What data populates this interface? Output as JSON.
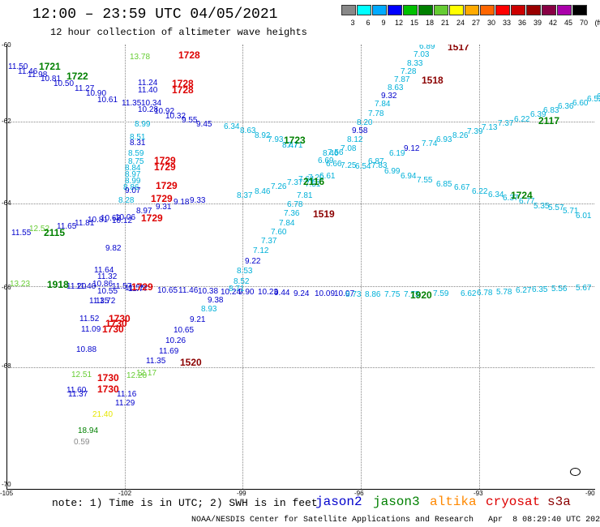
{
  "title": "12:00 – 23:59 UTC 04/05/2021",
  "subtitle": "12 hour collection of altimeter wave heights",
  "color_scale": {
    "labels": [
      "3",
      "6",
      "9",
      "12",
      "15",
      "18",
      "21",
      "24",
      "27",
      "30",
      "33",
      "36",
      "39",
      "42",
      "45",
      "70",
      "(ft)"
    ],
    "colors": [
      "#888888",
      "#00ffff",
      "#00aaff",
      "#0000ff",
      "#00c000",
      "#008000",
      "#66cc33",
      "#ffff00",
      "#ffaa00",
      "#ff6600",
      "#ff0000",
      "#cc0000",
      "#990000",
      "#880044",
      "#aa00aa",
      "#000000"
    ]
  },
  "axes": {
    "lat_labels": [
      "-60",
      "-62",
      "-64",
      "-66",
      "-68",
      "-70"
    ],
    "lon_labels": [
      "-105",
      "-102",
      "-99",
      "-96",
      "-93",
      "-90"
    ]
  },
  "colors": {
    "jason2": "#0000cc",
    "jason3": "#008000",
    "altika": "#ff8800",
    "cryosat": "#dd0000",
    "s3a": "#8b0000",
    "cyan": "#00b0d8",
    "lightgreen": "#66cc33",
    "yellow": "#e6e600",
    "gray": "#888888"
  },
  "observations": [
    {
      "t": "11.50",
      "c": "#0000cc"
    },
    {
      "t": "11.46",
      "c": "#0000cc"
    },
    {
      "t": "11.98",
      "c": "#0000cc"
    },
    {
      "t": "10.81",
      "c": "#0000cc"
    },
    {
      "t": "10.50",
      "c": "#0000cc"
    },
    {
      "t": "11.27",
      "c": "#0000cc"
    },
    {
      "t": "10.90",
      "c": "#0000cc"
    },
    {
      "t": "10.61",
      "c": "#0000cc"
    },
    {
      "t": "11.24",
      "c": "#0000cc"
    },
    {
      "t": "11.40",
      "c": "#0000cc"
    },
    {
      "t": "11.35",
      "c": "#0000cc"
    },
    {
      "t": "10.34",
      "c": "#0000cc"
    },
    {
      "t": "10.28",
      "c": "#0000cc"
    },
    {
      "t": "10.92",
      "c": "#0000cc"
    },
    {
      "t": "10.32",
      "c": "#0000cc"
    },
    {
      "t": "9.55",
      "c": "#0000cc"
    },
    {
      "t": "9.45",
      "c": "#0000cc"
    },
    {
      "t": "8.99",
      "c": "#00b0d8"
    },
    {
      "t": "8.51",
      "c": "#00b0d8"
    },
    {
      "t": "8.31",
      "c": "#0000cc"
    },
    {
      "t": "8.59",
      "c": "#00b0d8"
    },
    {
      "t": "8.75",
      "c": "#00b0d8"
    },
    {
      "t": "8.84",
      "c": "#00b0d8"
    },
    {
      "t": "8.97",
      "c": "#00b0d8"
    },
    {
      "t": "8.99",
      "c": "#00b0d8"
    },
    {
      "t": "8.86",
      "c": "#00b0d8"
    },
    {
      "t": "9.07",
      "c": "#0000cc"
    },
    {
      "t": "8.28",
      "c": "#00b0d8"
    },
    {
      "t": "8.97",
      "c": "#0000cc"
    },
    {
      "t": "9.31",
      "c": "#0000cc"
    },
    {
      "t": "9.18",
      "c": "#0000cc"
    },
    {
      "t": "9.33",
      "c": "#0000cc"
    },
    {
      "t": "10.06",
      "c": "#0000cc"
    },
    {
      "t": "10.62",
      "c": "#0000cc"
    },
    {
      "t": "10.12",
      "c": "#0000cc"
    },
    {
      "t": "10.81",
      "c": "#0000cc"
    },
    {
      "t": "11.81",
      "c": "#0000cc"
    },
    {
      "t": "11.65",
      "c": "#0000cc"
    },
    {
      "t": "11.55",
      "c": "#0000cc"
    },
    {
      "t": "12.52",
      "c": "#66cc33"
    },
    {
      "t": "9.82",
      "c": "#0000cc"
    },
    {
      "t": "11.64",
      "c": "#0000cc"
    },
    {
      "t": "11.32",
      "c": "#0000cc"
    },
    {
      "t": "13.23",
      "c": "#66cc33"
    },
    {
      "t": "11.20",
      "c": "#0000cc"
    },
    {
      "t": "11.40",
      "c": "#0000cc"
    },
    {
      "t": "10.86",
      "c": "#0000cc"
    },
    {
      "t": "10.55",
      "c": "#0000cc"
    },
    {
      "t": "11.72",
      "c": "#0000cc"
    },
    {
      "t": "11.35",
      "c": "#0000cc"
    },
    {
      "t": "11.57",
      "c": "#0000cc"
    },
    {
      "t": "11.55",
      "c": "#0000cc"
    },
    {
      "t": "11.77",
      "c": "#0000cc"
    },
    {
      "t": "10.65",
      "c": "#0000cc"
    },
    {
      "t": "11.46",
      "c": "#0000cc"
    },
    {
      "t": "10.38",
      "c": "#0000cc"
    },
    {
      "t": "10.24",
      "c": "#0000cc"
    },
    {
      "t": "9.90",
      "c": "#0000cc"
    },
    {
      "t": "10.23",
      "c": "#0000cc"
    },
    {
      "t": "9.44",
      "c": "#0000cc"
    },
    {
      "t": "9.24",
      "c": "#0000cc"
    },
    {
      "t": "10.09",
      "c": "#0000cc"
    },
    {
      "t": "10.07",
      "c": "#0000cc"
    },
    {
      "t": "8.73",
      "c": "#00b0d8"
    },
    {
      "t": "8.86",
      "c": "#00b0d8"
    },
    {
      "t": "7.75",
      "c": "#00b0d8"
    },
    {
      "t": "7.75",
      "c": "#00b0d8"
    },
    {
      "t": "7.59",
      "c": "#00b0d8"
    },
    {
      "t": "6.62",
      "c": "#00b0d8"
    },
    {
      "t": "6.78",
      "c": "#00b0d8"
    },
    {
      "t": "5.78",
      "c": "#00b0d8"
    },
    {
      "t": "6.27",
      "c": "#00b0d8"
    },
    {
      "t": "6.35",
      "c": "#00b0d8"
    },
    {
      "t": "5.56",
      "c": "#00b0d8"
    },
    {
      "t": "5.67",
      "c": "#00b0d8"
    },
    {
      "t": "11.52",
      "c": "#0000cc"
    },
    {
      "t": "11.09",
      "c": "#0000cc"
    },
    {
      "t": "10.88",
      "c": "#0000cc"
    },
    {
      "t": "9.38",
      "c": "#0000cc"
    },
    {
      "t": "8.93",
      "c": "#00b0d8"
    },
    {
      "t": "9.21",
      "c": "#0000cc"
    },
    {
      "t": "10.65",
      "c": "#0000cc"
    },
    {
      "t": "10.26",
      "c": "#0000cc"
    },
    {
      "t": "11.69",
      "c": "#0000cc"
    },
    {
      "t": "11.35",
      "c": "#0000cc"
    },
    {
      "t": "12.17",
      "c": "#66cc33"
    },
    {
      "t": "12.51",
      "c": "#66cc33"
    },
    {
      "t": "12.28",
      "c": "#66cc33"
    },
    {
      "t": "11.60",
      "c": "#0000cc"
    },
    {
      "t": "11.37",
      "c": "#0000cc"
    },
    {
      "t": "11.16",
      "c": "#0000cc"
    },
    {
      "t": "11.29",
      "c": "#0000cc"
    },
    {
      "t": "21.40",
      "c": "#e6e600"
    },
    {
      "t": "18.94",
      "c": "#008000"
    },
    {
      "t": "0.59",
      "c": "#888888"
    },
    {
      "t": "13.78",
      "c": "#66cc33"
    },
    {
      "t": "6.89",
      "c": "#00b0d8"
    },
    {
      "t": "7.03",
      "c": "#00b0d8"
    },
    {
      "t": "8.33",
      "c": "#00b0d8"
    },
    {
      "t": "7.28",
      "c": "#00b0d8"
    },
    {
      "t": "7.87",
      "c": "#00b0d8"
    },
    {
      "t": "8.63",
      "c": "#00b0d8"
    },
    {
      "t": "9.32",
      "c": "#0000cc"
    },
    {
      "t": "7.84",
      "c": "#00b0d8"
    },
    {
      "t": "7.78",
      "c": "#00b0d8"
    },
    {
      "t": "8.20",
      "c": "#00b0d8"
    },
    {
      "t": "9.58",
      "c": "#0000cc"
    },
    {
      "t": "8.12",
      "c": "#00b0d8"
    },
    {
      "t": "7.08",
      "c": "#00b0d8"
    },
    {
      "t": "7.56",
      "c": "#00b0d8"
    },
    {
      "t": "8.46",
      "c": "#00b0d8"
    },
    {
      "t": "7.71",
      "c": "#00b0d8"
    },
    {
      "t": "6.34",
      "c": "#00b0d8"
    },
    {
      "t": "8.63",
      "c": "#00b0d8"
    },
    {
      "t": "8.92",
      "c": "#00b0d8"
    },
    {
      "t": "7.93",
      "c": "#00b0d8"
    },
    {
      "t": "8.47",
      "c": "#00b0d8"
    },
    {
      "t": "6.69",
      "c": "#00b0d8"
    },
    {
      "t": "6.66",
      "c": "#00b0d8"
    },
    {
      "t": "7.25",
      "c": "#00b0d8"
    },
    {
      "t": "6.54",
      "c": "#00b0d8"
    },
    {
      "t": "6.87",
      "c": "#00b0d8"
    },
    {
      "t": "6.19",
      "c": "#00b0d8"
    },
    {
      "t": "9.12",
      "c": "#0000cc"
    },
    {
      "t": "7.74",
      "c": "#00b0d8"
    },
    {
      "t": "6.93",
      "c": "#00b0d8"
    },
    {
      "t": "8.26",
      "c": "#00b0d8"
    },
    {
      "t": "7.39",
      "c": "#00b0d8"
    },
    {
      "t": "7.13",
      "c": "#00b0d8"
    },
    {
      "t": "7.37",
      "c": "#00b0d8"
    },
    {
      "t": "6.22",
      "c": "#00b0d8"
    },
    {
      "t": "6.39",
      "c": "#00b0d8"
    },
    {
      "t": "6.83",
      "c": "#00b0d8"
    },
    {
      "t": "6.36",
      "c": "#00b0d8"
    },
    {
      "t": "6.60",
      "c": "#00b0d8"
    },
    {
      "t": "6.52",
      "c": "#00b0d8"
    },
    {
      "t": "6.13",
      "c": "#00b0d8"
    },
    {
      "t": "7.83",
      "c": "#00b0d8"
    },
    {
      "t": "6.99",
      "c": "#00b0d8"
    },
    {
      "t": "6.94",
      "c": "#00b0d8"
    },
    {
      "t": "7.55",
      "c": "#00b0d8"
    },
    {
      "t": "6.85",
      "c": "#00b0d8"
    },
    {
      "t": "6.67",
      "c": "#00b0d8"
    },
    {
      "t": "6.22",
      "c": "#00b0d8"
    },
    {
      "t": "6.34",
      "c": "#00b0d8"
    },
    {
      "t": "6.37",
      "c": "#00b0d8"
    },
    {
      "t": "6.77",
      "c": "#00b0d8"
    },
    {
      "t": "5.35",
      "c": "#00b0d8"
    },
    {
      "t": "5.57",
      "c": "#00b0d8"
    },
    {
      "t": "5.71",
      "c": "#00b0d8"
    },
    {
      "t": "6.01",
      "c": "#00b0d8"
    },
    {
      "t": "7.20",
      "c": "#00b0d8"
    },
    {
      "t": "6.61",
      "c": "#00b0d8"
    },
    {
      "t": "7.64",
      "c": "#00b0d8"
    },
    {
      "t": "7.37",
      "c": "#00b0d8"
    },
    {
      "t": "7.26",
      "c": "#00b0d8"
    },
    {
      "t": "8.46",
      "c": "#00b0d8"
    },
    {
      "t": "8.37",
      "c": "#00b0d8"
    },
    {
      "t": "7.51",
      "c": "#00b0d8"
    },
    {
      "t": "7.81",
      "c": "#00b0d8"
    },
    {
      "t": "6.78",
      "c": "#00b0d8"
    },
    {
      "t": "7.36",
      "c": "#00b0d8"
    },
    {
      "t": "7.84",
      "c": "#00b0d8"
    },
    {
      "t": "7.60",
      "c": "#00b0d8"
    },
    {
      "t": "7.37",
      "c": "#00b0d8"
    },
    {
      "t": "7.12",
      "c": "#00b0d8"
    },
    {
      "t": "9.22",
      "c": "#0000cc"
    },
    {
      "t": "8.53",
      "c": "#00b0d8"
    },
    {
      "t": "8.52",
      "c": "#00b0d8"
    },
    {
      "t": "8.71",
      "c": "#00b0d8"
    }
  ],
  "tracks": [
    {
      "t": "1721",
      "c": "#008000"
    },
    {
      "t": "1722",
      "c": "#008000"
    },
    {
      "t": "1728",
      "c": "#dd0000"
    },
    {
      "t": "1728",
      "c": "#dd0000"
    },
    {
      "t": "1728",
      "c": "#dd0000"
    },
    {
      "t": "1729",
      "c": "#dd0000"
    },
    {
      "t": "1729",
      "c": "#dd0000"
    },
    {
      "t": "1729",
      "c": "#dd0000"
    },
    {
      "t": "1729",
      "c": "#dd0000"
    },
    {
      "t": "1729",
      "c": "#dd0000"
    },
    {
      "t": "2115",
      "c": "#008000"
    },
    {
      "t": "1918",
      "c": "#008000"
    },
    {
      "t": "1729",
      "c": "#dd0000"
    },
    {
      "t": "1730",
      "c": "#dd0000"
    },
    {
      "t": "1730",
      "c": "#dd0000"
    },
    {
      "t": "1730",
      "c": "#dd0000"
    },
    {
      "t": "1730",
      "c": "#dd0000"
    },
    {
      "t": "1730",
      "c": "#dd0000"
    },
    {
      "t": "1520",
      "c": "#8b0000"
    },
    {
      "t": "1723",
      "c": "#008000"
    },
    {
      "t": "2116",
      "c": "#008000"
    },
    {
      "t": "1519",
      "c": "#8b0000"
    },
    {
      "t": "1517",
      "c": "#8b0000"
    },
    {
      "t": "1518",
      "c": "#8b0000"
    },
    {
      "t": "2117",
      "c": "#008000"
    },
    {
      "t": "1724",
      "c": "#008000"
    },
    {
      "t": "1920",
      "c": "#008000"
    }
  ],
  "footer": {
    "note": "note: 1) Time is in UTC; 2) SWH is in feet",
    "satellites": [
      {
        "name": "jason2",
        "c": "#0000cc"
      },
      {
        "name": "jason3",
        "c": "#008000"
      },
      {
        "name": "altika",
        "c": "#ff8800"
      },
      {
        "name": "cryosat",
        "c": "#dd0000"
      },
      {
        "name": "s3a",
        "c": "#8b0000"
      }
    ],
    "credit": "NOAA/NESDIS Center for Satellite Applications and Research   Apr  8 08:29:40 UTC 2021"
  }
}
